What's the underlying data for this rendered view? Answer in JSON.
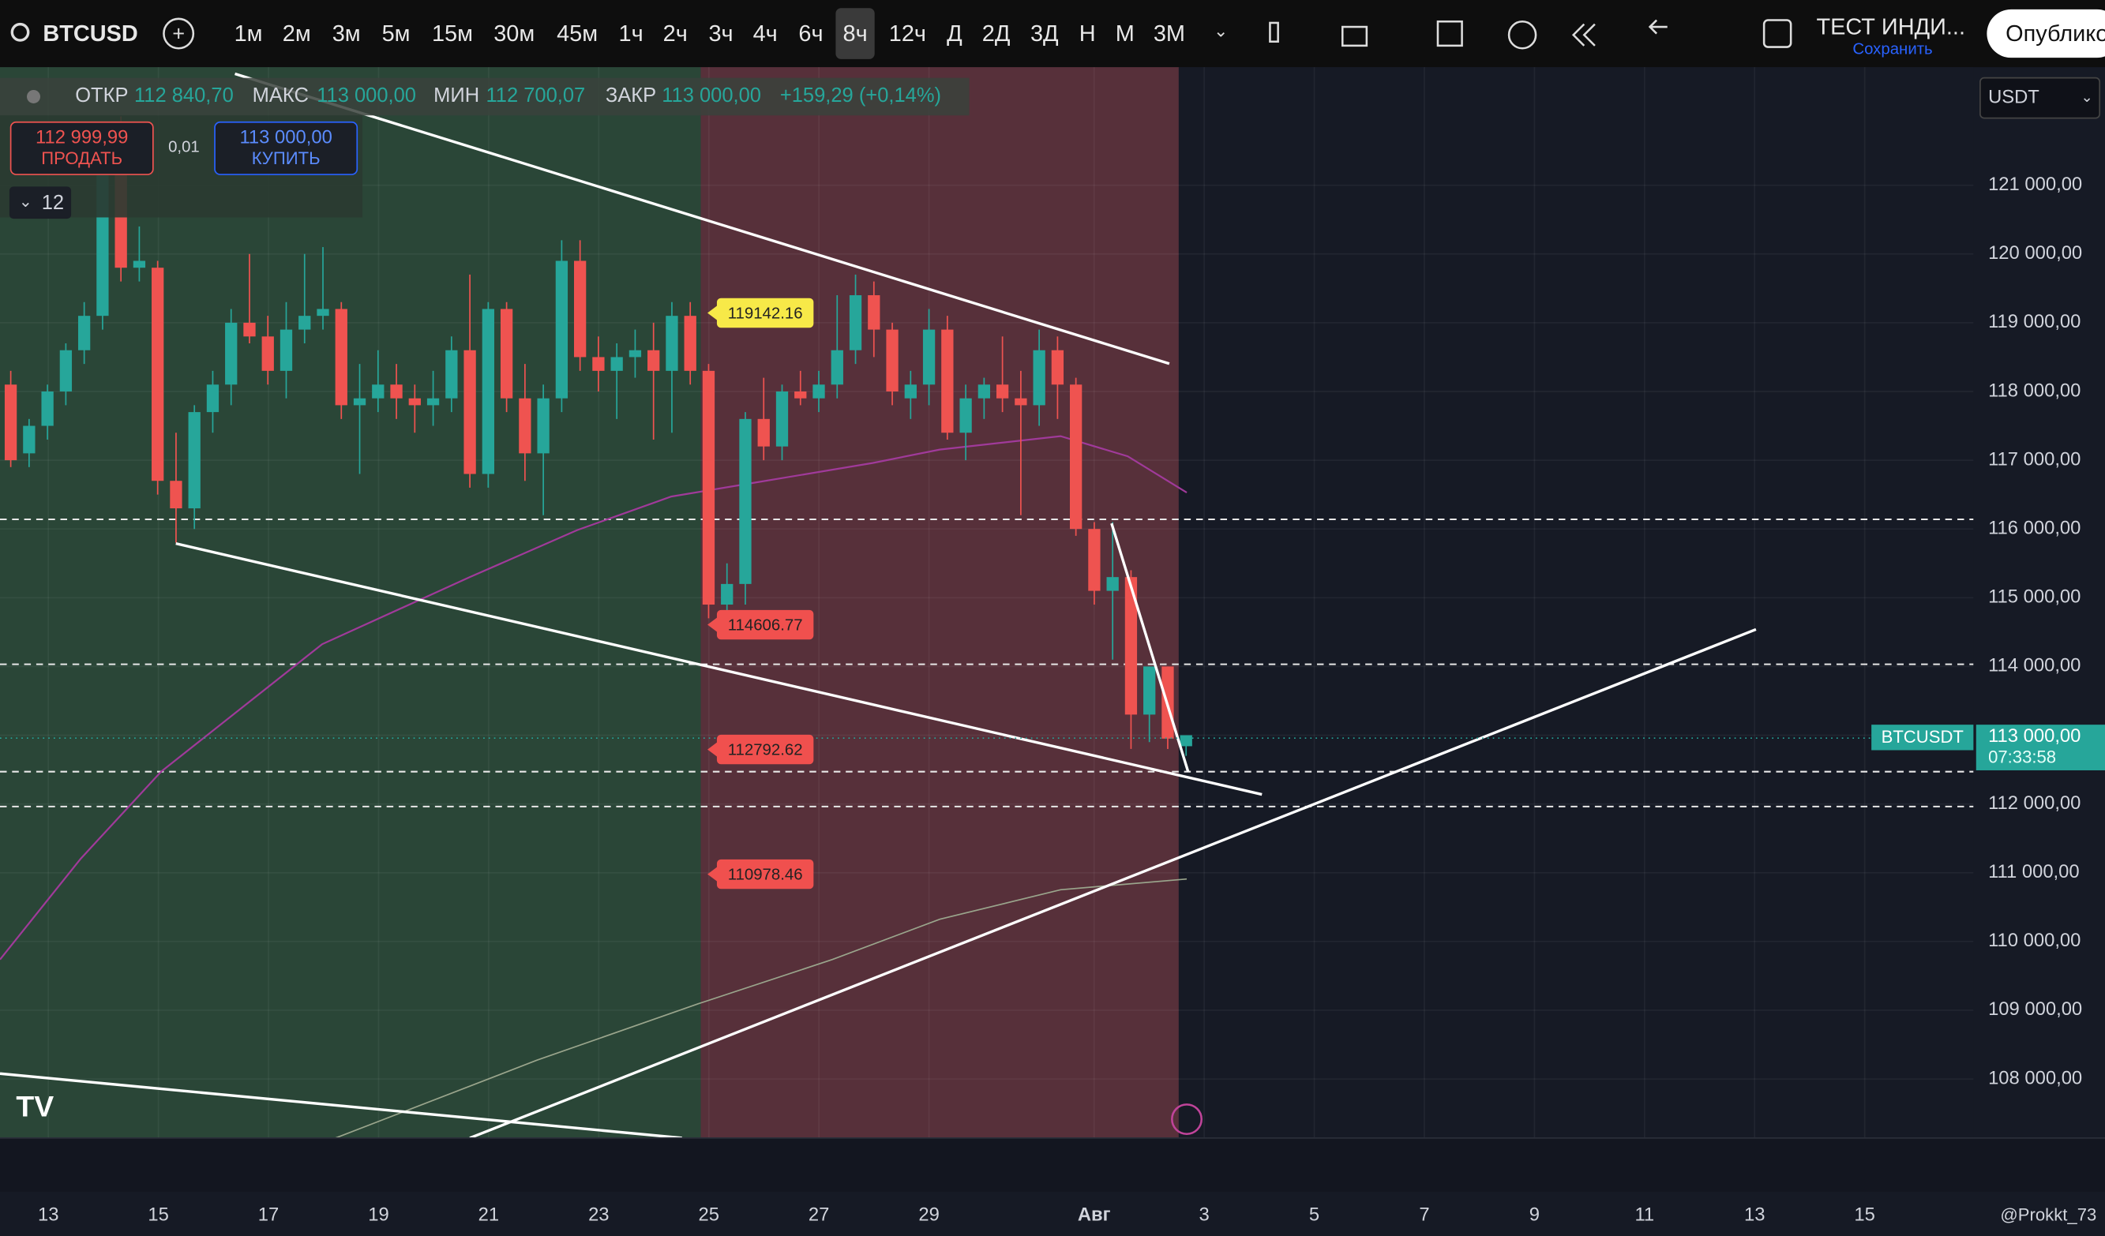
{
  "toolbar": {
    "symbol": "BTCUSD",
    "intervals": [
      "1м",
      "2м",
      "3м",
      "5м",
      "15м",
      "30м",
      "45м",
      "1ч",
      "2ч",
      "3ч",
      "4ч",
      "6ч",
      "8ч",
      "12ч",
      "Д",
      "2Д",
      "3Д",
      "Н",
      "М",
      "3М"
    ],
    "active_interval": "8ч",
    "layout_name": "ТЕСТ ИНДИ...",
    "save": "Сохранить",
    "publish": "Опублико"
  },
  "legend": {
    "open_label": "ОТКР",
    "open": "112 840,70",
    "high_label": "МАКС",
    "high": "113 000,00",
    "low_label": "МИН",
    "low": "112 700,07",
    "close_label": "ЗАКР",
    "close": "113 000,00",
    "change": "+159,29 (+0,14%)"
  },
  "trade": {
    "sell_price": "112 999,99",
    "sell": "ПРОДАТЬ",
    "spread": "0,01",
    "buy_price": "113 000,00",
    "buy": "КУПИТЬ",
    "indicators": "12"
  },
  "currency": "USDT",
  "chart": {
    "type": "candlestick",
    "up_color": "#26a69a",
    "down_color": "#ef5350",
    "ylim": [
      107200,
      122700
    ],
    "yticks": [
      {
        "value": 121000,
        "label": "121 000,00"
      },
      {
        "value": 120000,
        "label": "120 000,00"
      },
      {
        "value": 119000,
        "label": "119 000,00"
      },
      {
        "value": 118000,
        "label": "118 000,00"
      },
      {
        "value": 117000,
        "label": "117 000,00"
      },
      {
        "value": 116000,
        "label": "116 000,00"
      },
      {
        "value": 115000,
        "label": "115 000,00"
      },
      {
        "value": 114000,
        "label": "114 000,00"
      },
      {
        "value": 113000,
        "label": "113 000,00"
      },
      {
        "value": 112000,
        "label": "112 000,00"
      },
      {
        "value": 111000,
        "label": "111 000,00"
      },
      {
        "value": 110000,
        "label": "110 000,00"
      },
      {
        "value": 109000,
        "label": "109 000,00"
      },
      {
        "value": 108000,
        "label": "108 000,00"
      }
    ],
    "dates": [
      "13",
      "15",
      "17",
      "19",
      "21",
      "23",
      "25",
      "27",
      "29",
      "Авг",
      "3",
      "5",
      "7",
      "9",
      "11",
      "13",
      "15"
    ],
    "price_tags": [
      119142.16,
      114606.77,
      112792.62,
      110978.46
    ],
    "price_tag_colors": [
      "#f7e948",
      "#f0504e",
      "#f0504e",
      "#f0504e"
    ],
    "last_symbol": "BTCUSDT",
    "last_price": {
      "value": 113000,
      "label": "113 000,00"
    },
    "countdown": "07:33:58",
    "candles": [
      [
        118100,
        118300,
        116900,
        117000
      ],
      [
        117100,
        117600,
        116900,
        117500
      ],
      [
        117500,
        118100,
        117300,
        118000
      ],
      [
        118000,
        118700,
        117800,
        118600
      ],
      [
        118600,
        119300,
        118400,
        119100
      ],
      [
        119100,
        121900,
        118900,
        121500
      ],
      [
        121800,
        122000,
        119600,
        119800
      ],
      [
        119800,
        120400,
        119600,
        119900
      ],
      [
        119800,
        119900,
        116500,
        116700
      ],
      [
        116700,
        117400,
        115800,
        116300
      ],
      [
        116300,
        117800,
        116000,
        117700
      ],
      [
        117700,
        118300,
        117400,
        118100
      ],
      [
        118100,
        119200,
        117800,
        119000
      ],
      [
        119000,
        120000,
        118700,
        118800
      ],
      [
        118800,
        119100,
        118100,
        118300
      ],
      [
        118300,
        119300,
        117900,
        118900
      ],
      [
        118900,
        120000,
        118700,
        119100
      ],
      [
        119100,
        120100,
        118900,
        119200
      ],
      [
        119200,
        119300,
        117600,
        117800
      ],
      [
        117800,
        118400,
        116800,
        117900
      ],
      [
        117900,
        118600,
        117700,
        118100
      ],
      [
        118100,
        118400,
        117600,
        117900
      ],
      [
        117900,
        118100,
        117400,
        117800
      ],
      [
        117800,
        118300,
        117500,
        117900
      ],
      [
        117900,
        118800,
        117700,
        118600
      ],
      [
        118600,
        119700,
        116600,
        116800
      ],
      [
        116800,
        119300,
        116600,
        119200
      ],
      [
        119200,
        119300,
        117700,
        117900
      ],
      [
        117900,
        118400,
        116700,
        117100
      ],
      [
        117100,
        118100,
        116200,
        117900
      ],
      [
        117900,
        120200,
        117700,
        119900
      ],
      [
        119900,
        120200,
        118300,
        118500
      ],
      [
        118500,
        118800,
        118000,
        118300
      ],
      [
        118300,
        118700,
        117600,
        118500
      ],
      [
        118500,
        118900,
        118200,
        118600
      ],
      [
        118600,
        119000,
        117300,
        118300
      ],
      [
        118300,
        119300,
        117400,
        119100
      ],
      [
        119100,
        119300,
        118100,
        118300
      ],
      [
        118300,
        118400,
        114700,
        114900
      ],
      [
        114900,
        115500,
        114700,
        115200
      ],
      [
        115200,
        117700,
        114900,
        117600
      ],
      [
        117600,
        118200,
        117000,
        117200
      ],
      [
        117200,
        118100,
        117000,
        118000
      ],
      [
        118000,
        118300,
        117800,
        117900
      ],
      [
        117900,
        118300,
        117700,
        118100
      ],
      [
        118100,
        119400,
        117900,
        118600
      ],
      [
        118600,
        119700,
        118400,
        119400
      ],
      [
        119400,
        119600,
        118500,
        118900
      ],
      [
        118900,
        119000,
        117800,
        118000
      ],
      [
        117900,
        118300,
        117600,
        118100
      ],
      [
        118100,
        119200,
        117800,
        118900
      ],
      [
        118900,
        119100,
        117300,
        117400
      ],
      [
        117400,
        118100,
        117000,
        117900
      ],
      [
        117900,
        118200,
        117600,
        118100
      ],
      [
        118100,
        118800,
        117700,
        117900
      ],
      [
        117900,
        118300,
        116200,
        117800
      ],
      [
        117800,
        118900,
        117500,
        118600
      ],
      [
        118600,
        118800,
        117600,
        118100
      ],
      [
        118100,
        118200,
        115900,
        116000
      ],
      [
        116000,
        116100,
        114900,
        115100
      ],
      [
        115100,
        116100,
        114100,
        115300
      ],
      [
        115300,
        115400,
        112800,
        113300
      ],
      [
        113300,
        114000,
        112900,
        114000
      ],
      [
        114000,
        114000,
        112800,
        112950
      ],
      [
        112840,
        113000,
        112700,
        113000
      ]
    ]
  },
  "watermark": "@Prokkt_73"
}
